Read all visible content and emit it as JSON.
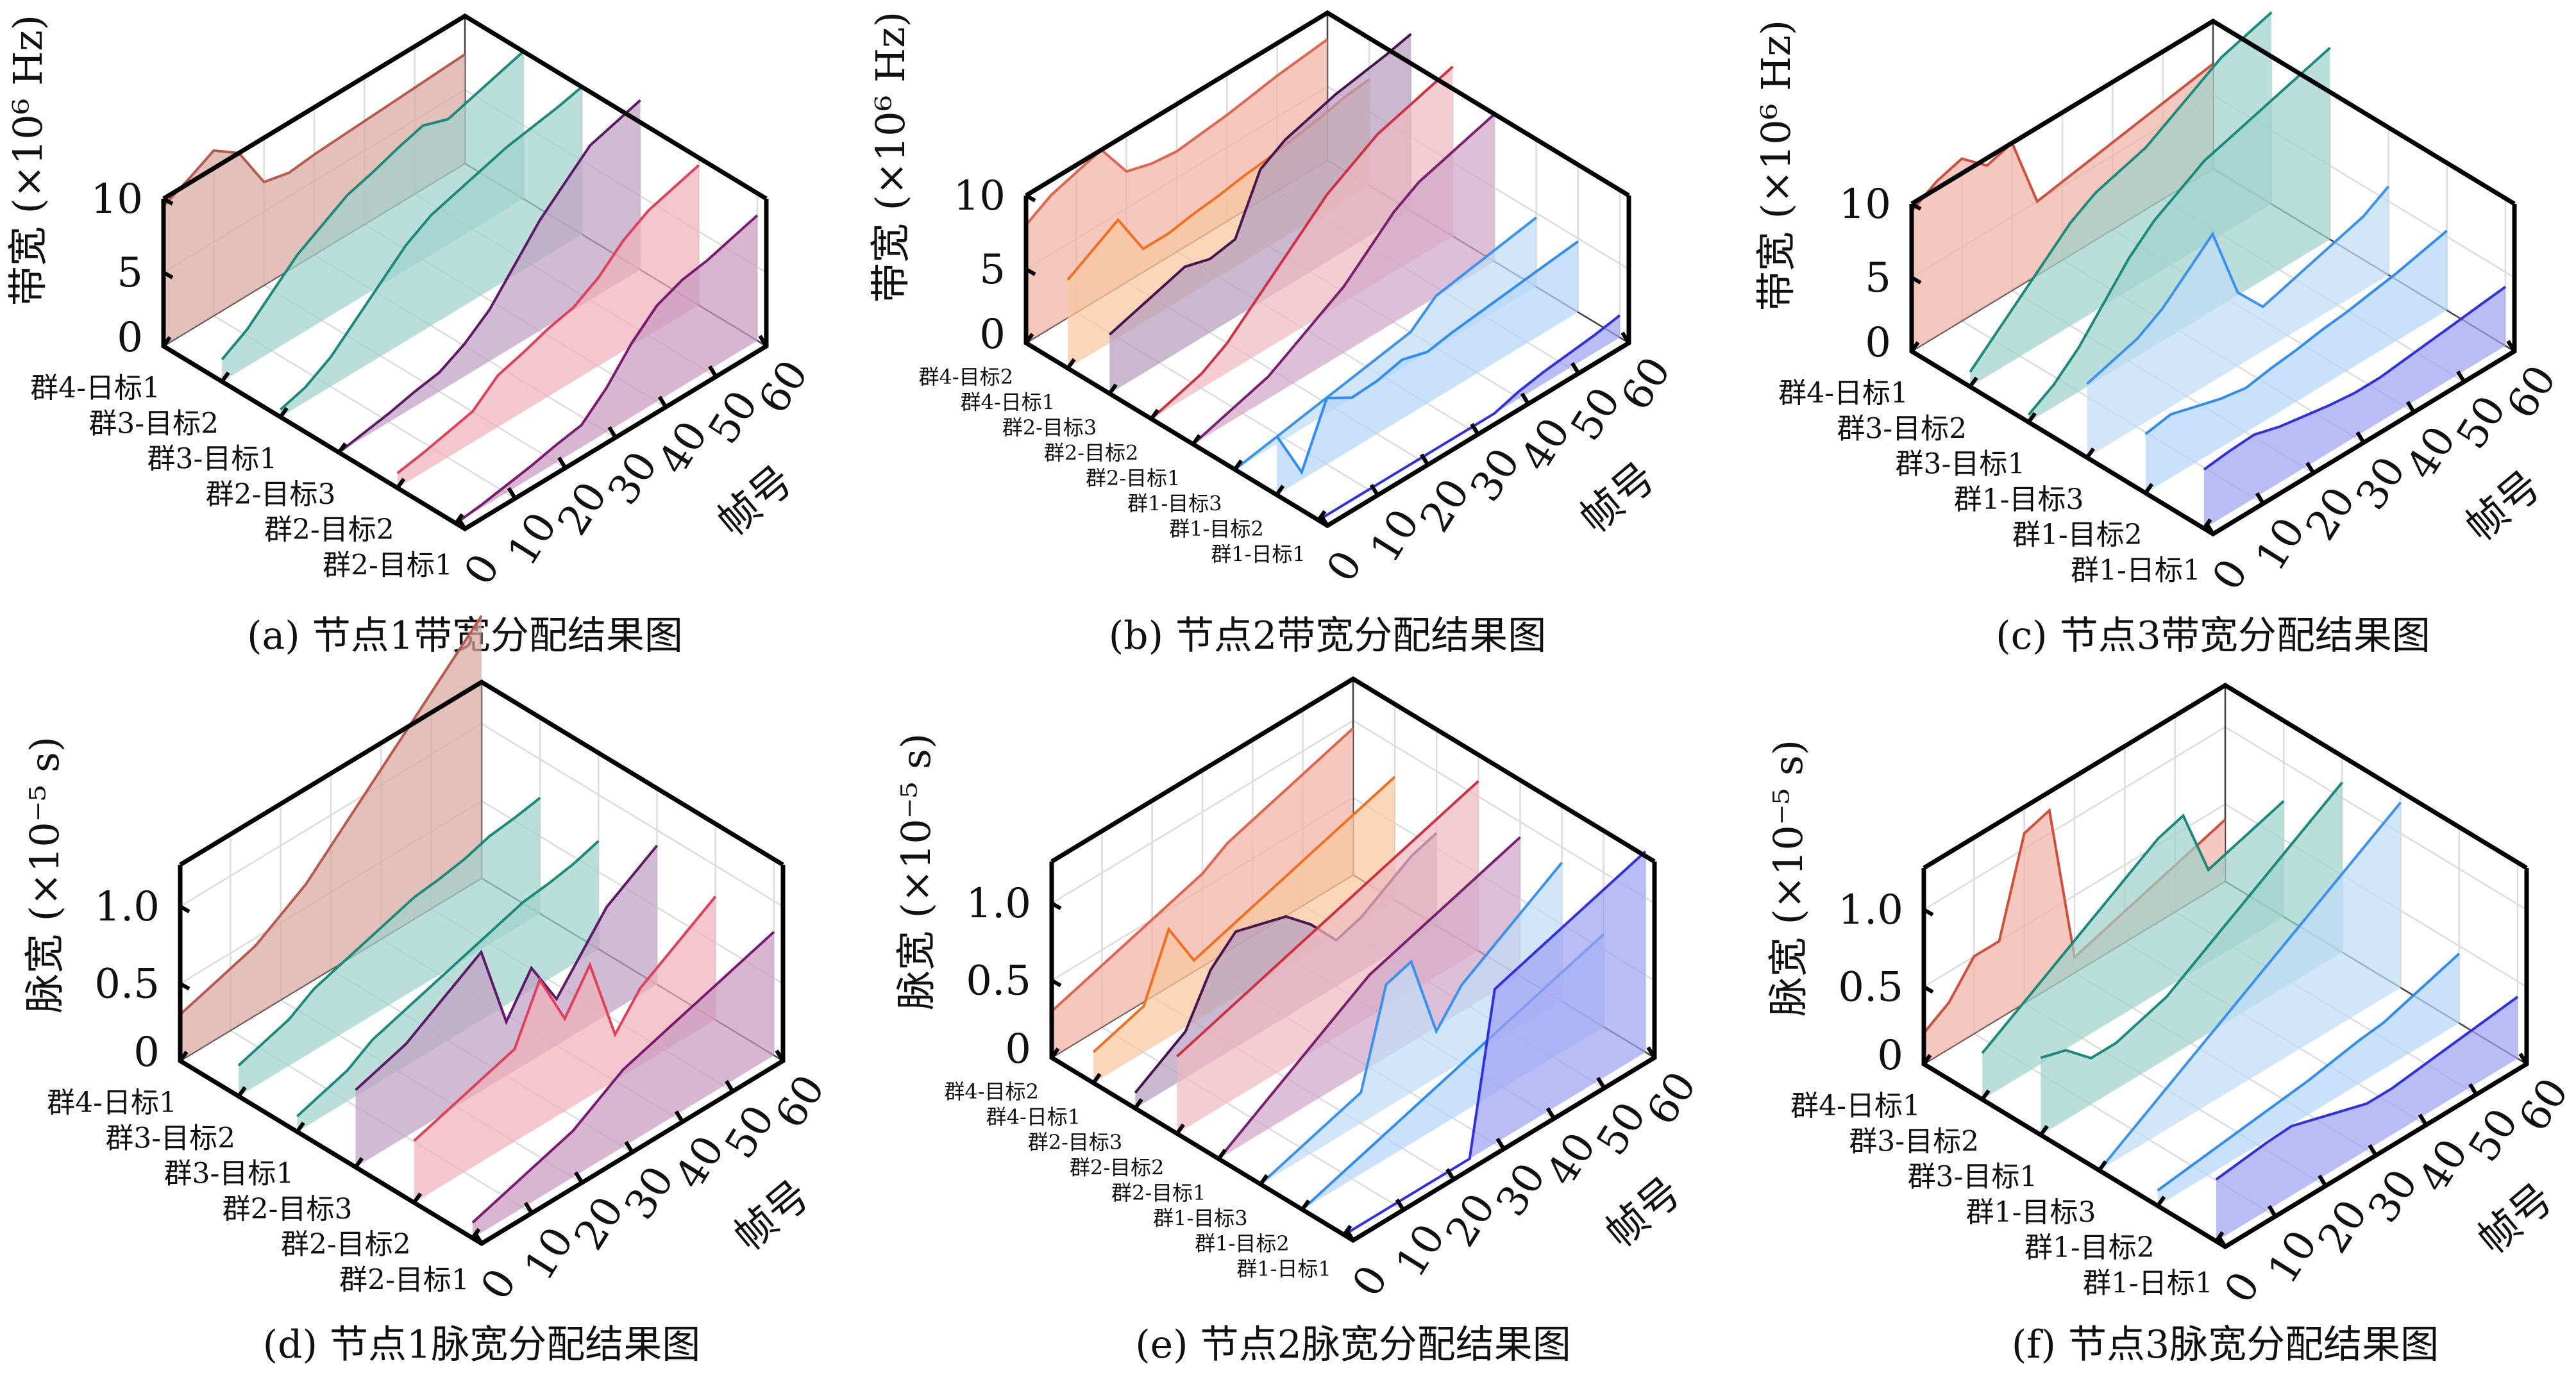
{
  "chart_data": [
    {
      "id": "a",
      "type": "area",
      "caption": "(a) 节点1带宽分配结果图",
      "zlabel": "带宽 (×10⁶ Hz)",
      "xlabel": "帧号",
      "x": [
        0,
        5,
        10,
        15,
        20,
        25,
        30,
        35,
        40,
        45,
        50,
        55,
        60
      ],
      "xticks": [
        0,
        10,
        20,
        30,
        40,
        50,
        60
      ],
      "zticks": [
        "0",
        "5",
        "10"
      ],
      "zticks_values": [
        0,
        5,
        10
      ],
      "zlim": [
        0,
        10
      ],
      "series": [
        {
          "name": "群4-日标1",
          "line": "#b85a4e",
          "fill": "#d9a7a0",
          "values": [
            9.5,
            10.3,
            11.2,
            10,
            7,
            6.6,
            6.8,
            6.9,
            7,
            7.1,
            7.2,
            7.3,
            7.4
          ]
        },
        {
          "name": "群3-目标2",
          "line": "#1a8a7a",
          "fill": "#9fd1ca",
          "values": [
            1.5,
            2.5,
            4,
            5.5,
            6.5,
            7.5,
            8,
            8.6,
            9.1,
            8.5,
            9,
            9.5,
            10
          ]
        },
        {
          "name": "群3-目标1",
          "line": "#1a8a7a",
          "fill": "#9fd1ca",
          "values": [
            0.5,
            1,
            2,
            3.5,
            5,
            6.5,
            7.5,
            8,
            8.5,
            9,
            9.3,
            9.6,
            10
          ]
        },
        {
          "name": "群2-目标3",
          "line": "#5e1a66",
          "fill": "#bfa0c2",
          "values": [
            0,
            0.3,
            0.6,
            1,
            1.3,
            2.2,
            3.5,
            5.5,
            7.5,
            9,
            10.5,
            11,
            11.5
          ]
        },
        {
          "name": "群2-目标2",
          "line": "#e0405a",
          "fill": "#f0b0ba",
          "values": [
            1,
            1.3,
            1.7,
            2.1,
            3.5,
            4,
            4.6,
            5,
            6,
            7.5,
            8.5,
            9,
            9.5
          ]
        },
        {
          "name": "群2-目标1",
          "line": "#7a1a70",
          "fill": "#c99ac1",
          "values": [
            0,
            0.2,
            0.5,
            0.8,
            1.2,
            1.5,
            3,
            5,
            6.5,
            7.2,
            7.5,
            8,
            8.5
          ]
        }
      ]
    },
    {
      "id": "b",
      "type": "area",
      "caption": "(b) 节点2带宽分配结果图",
      "zlabel": "带宽 (×10⁶ Hz)",
      "xlabel": "帧号",
      "x": [
        0,
        5,
        10,
        15,
        20,
        25,
        30,
        35,
        40,
        45,
        50,
        55,
        60
      ],
      "xticks": [
        0,
        10,
        20,
        30,
        40,
        50,
        60
      ],
      "zticks": [
        "0",
        "5",
        "10"
      ],
      "zticks_values": [
        0,
        5,
        10
      ],
      "zlim": [
        0,
        10
      ],
      "series": [
        {
          "name": "群4-目标2",
          "line": "#e0654e",
          "fill": "#f2b3a4",
          "values": [
            8,
            9,
            9.5,
            10,
            7.5,
            7,
            6.8,
            7,
            7.2,
            7.5,
            7.8,
            8,
            8.2
          ]
        },
        {
          "name": "群4-日标1",
          "line": "#f07020",
          "fill": "#f8c6a0",
          "values": [
            6,
            7,
            8,
            5,
            5,
            5.3,
            5.5,
            5.8,
            6,
            6.3,
            6.6,
            7,
            7.2
          ]
        },
        {
          "name": "群2-目标3",
          "line": "#4a1450",
          "fill": "#b49cbc",
          "values": [
            4,
            4.5,
            5,
            5.5,
            5,
            5.3,
            9,
            10,
            10.5,
            11,
            11.3,
            11.6,
            12
          ]
        },
        {
          "name": "群2-目标2",
          "line": "#d03040",
          "fill": "#eebac0",
          "values": [
            0,
            0.5,
            1,
            2,
            3.5,
            5,
            6.5,
            8,
            9,
            10,
            10.5,
            11,
            11.5
          ]
        },
        {
          "name": "群2-目标1",
          "line": "#7a2070",
          "fill": "#d0a6c8",
          "values": [
            0,
            0.5,
            1,
            1.5,
            2.5,
            3.5,
            4.5,
            6,
            7.5,
            8.5,
            9,
            9.5,
            10
          ]
        },
        {
          "name": "群1-目标3",
          "line": "#3a92f0",
          "fill": "#c0dcf8",
          "values": [
            0,
            0.3,
            0.6,
            0.9,
            1.2,
            1.5,
            1.8,
            2.1,
            3.5,
            3.8,
            4.1,
            4.4,
            4.7
          ]
        },
        {
          "name": "群1-目标2",
          "line": "#2f8cf0",
          "fill": "#b4d6f8",
          "values": [
            4,
            0.5,
            4.5,
            3.5,
            3.6,
            4,
            3.5,
            3.8,
            4,
            4.2,
            4.4,
            4.6,
            4.8
          ]
        },
        {
          "name": "群1-日标1",
          "line": "#3030e0",
          "fill": "#a0a2f2",
          "values": [
            0,
            0,
            0,
            0,
            0,
            0,
            0,
            0,
            0.5,
            0.8,
            1,
            1.2,
            1.5
          ]
        }
      ]
    },
    {
      "id": "c",
      "type": "area",
      "caption": "(c) 节点3带宽分配结果图",
      "zlabel": "带宽 (×10⁶ Hz)",
      "xlabel": "帧号",
      "x": [
        0,
        5,
        10,
        15,
        20,
        25,
        30,
        35,
        40,
        45,
        50,
        55,
        60
      ],
      "xticks": [
        0,
        10,
        20,
        30,
        40,
        50,
        60
      ],
      "zticks": [
        "0",
        "5",
        "10"
      ],
      "zticks_values": [
        0,
        5,
        10
      ],
      "zlim": [
        0,
        10
      ],
      "series": [
        {
          "name": "群4-日标1",
          "line": "#d0503e",
          "fill": "#f0b2a6",
          "values": [
            9.5,
            10.5,
            11,
            9.5,
            10,
            5,
            5.3,
            5.6,
            5.9,
            6.2,
            6.5,
            6.8,
            7.1
          ]
        },
        {
          "name": "群3-目标2",
          "line": "#1a8a7a",
          "fill": "#9fd1ca",
          "values": [
            1,
            2.5,
            4,
            5.5,
            7,
            8,
            8.5,
            9,
            10,
            11,
            12,
            12.5,
            13
          ]
        },
        {
          "name": "群3-目标1",
          "line": "#1a8a7a",
          "fill": "#9fd1ca",
          "values": [
            0.5,
            1.5,
            3,
            5,
            7,
            8.5,
            9.5,
            10.5,
            11,
            11.5,
            12,
            12.5,
            13
          ]
        },
        {
          "name": "群1-目标3",
          "line": "#3a92f0",
          "fill": "#c0dcf8",
          "values": [
            5,
            5.5,
            6,
            7,
            8.5,
            10,
            5,
            3,
            3.5,
            4,
            4.5,
            5,
            6
          ]
        },
        {
          "name": "群1-目标2",
          "line": "#2f8cf0",
          "fill": "#b4d6f8",
          "values": [
            4,
            4.3,
            3.8,
            3.3,
            3,
            3.3,
            3.5,
            3.8,
            4,
            4.3,
            4.6,
            5,
            5.4
          ]
        },
        {
          "name": "群1-日标1",
          "line": "#3030e0",
          "fill": "#a0a2f2",
          "values": [
            4,
            4.2,
            4.3,
            3.8,
            3.5,
            3.2,
            3,
            3,
            3.2,
            3.4,
            3.6,
            3.8,
            4
          ]
        }
      ]
    },
    {
      "id": "d",
      "type": "area",
      "caption": "(d) 节点1脉宽分配结果图",
      "zlabel": "脉宽 (×10⁻⁵ s)",
      "xlabel": "帧号",
      "x": [
        0,
        5,
        10,
        15,
        20,
        25,
        30,
        35,
        40,
        45,
        50,
        55,
        60
      ],
      "xticks": [
        0,
        10,
        20,
        30,
        40,
        50,
        60
      ],
      "zticks": [
        "0",
        "0.5",
        "1.0"
      ],
      "zticks_values": [
        0,
        0.5,
        1.0
      ],
      "zlim": [
        0,
        1.27
      ],
      "series": [
        {
          "name": "群4-日标1",
          "line": "#b85a4e",
          "fill": "#d9a7a0",
          "values": [
            0.3,
            0.35,
            0.4,
            0.45,
            0.55,
            0.65,
            0.8,
            0.95,
            1.1,
            1.25,
            1.4,
            1.55,
            1.7
          ]
        },
        {
          "name": "群3-目标2",
          "line": "#1a8a7a",
          "fill": "#9fd1ca",
          "values": [
            0.2,
            0.25,
            0.3,
            0.4,
            0.45,
            0.5,
            0.55,
            0.6,
            0.62,
            0.65,
            0.7,
            0.72,
            0.75
          ]
        },
        {
          "name": "群3-目标1",
          "line": "#1a8a7a",
          "fill": "#9fd1ca",
          "values": [
            0.1,
            0.15,
            0.2,
            0.3,
            0.35,
            0.4,
            0.45,
            0.5,
            0.55,
            0.6,
            0.62,
            0.65,
            0.7
          ]
        },
        {
          "name": "群2-目标3",
          "line": "#5e1a66",
          "fill": "#bfa0c2",
          "values": [
            0.5,
            0.55,
            0.6,
            0.7,
            0.8,
            0.9,
            0.35,
            0.6,
            0.3,
            0.5,
            0.7,
            0.8,
            0.9
          ]
        },
        {
          "name": "群2-目标2",
          "line": "#e0405a",
          "fill": "#f0b0ba",
          "values": [
            0.4,
            0.45,
            0.5,
            0.55,
            0.6,
            0.95,
            0.6,
            0.85,
            0.3,
            0.5,
            0.6,
            0.7,
            0.8
          ]
        },
        {
          "name": "群2-目标1",
          "line": "#7a1a70",
          "fill": "#c99ac1",
          "values": [
            0.1,
            0.15,
            0.2,
            0.25,
            0.3,
            0.4,
            0.5,
            0.55,
            0.6,
            0.65,
            0.7,
            0.75,
            0.8
          ]
        }
      ]
    },
    {
      "id": "e",
      "type": "area",
      "caption": "(e) 节点2脉宽分配结果图",
      "zlabel": "脉宽 (×10⁻⁵ s)",
      "xlabel": "帧号",
      "x": [
        0,
        5,
        10,
        15,
        20,
        25,
        30,
        35,
        40,
        45,
        50,
        55,
        60
      ],
      "xticks": [
        0,
        10,
        20,
        30,
        40,
        50,
        60
      ],
      "zticks": [
        "0",
        "0.5",
        "1.0"
      ],
      "zticks_values": [
        0,
        0.5,
        1.0
      ],
      "zlim": [
        0,
        1.27
      ],
      "series": [
        {
          "name": "群4-目标2",
          "line": "#e0654e",
          "fill": "#f2b3a4",
          "values": [
            0.3,
            0.35,
            0.4,
            0.45,
            0.5,
            0.55,
            0.6,
            0.7,
            0.75,
            0.8,
            0.85,
            0.9,
            0.95
          ]
        },
        {
          "name": "群4-日标1",
          "line": "#f07020",
          "fill": "#f8c6a0",
          "values": [
            0.2,
            0.25,
            0.3,
            0.7,
            0.4,
            0.45,
            0.5,
            0.55,
            0.6,
            0.65,
            0.7,
            0.75,
            0.8
          ]
        },
        {
          "name": "群2-目标3",
          "line": "#4a1450",
          "fill": "#b49cbc",
          "values": [
            0.1,
            0.2,
            0.3,
            0.6,
            0.75,
            0.7,
            0.65,
            0.5,
            0.3,
            0.35,
            0.45,
            0.55,
            0.6
          ]
        },
        {
          "name": "群2-目标2",
          "line": "#d03040",
          "fill": "#eebac0",
          "values": [
            0.5,
            0.55,
            0.6,
            0.65,
            0.7,
            0.75,
            0.8,
            0.85,
            0.9,
            0.95,
            1.0,
            1.05,
            1.1
          ]
        },
        {
          "name": "群2-目标1",
          "line": "#7a2070",
          "fill": "#d0a6c8",
          "values": [
            0,
            0.1,
            0.2,
            0.3,
            0.4,
            0.5,
            0.6,
            0.65,
            0.7,
            0.75,
            0.8,
            0.85,
            0.9
          ]
        },
        {
          "name": "群1-目标3",
          "line": "#3a92f0",
          "fill": "#c0dcf8",
          "values": [
            0,
            0.05,
            0.1,
            0.15,
            0.2,
            0.8,
            0.85,
            0.3,
            0.5,
            0.6,
            0.7,
            0.8,
            0.9
          ]
        },
        {
          "name": "群1-目标2",
          "line": "#2f8cf0",
          "fill": "#b4d6f8",
          "values": [
            0,
            0.05,
            0.1,
            0.15,
            0.2,
            0.25,
            0.3,
            0.35,
            0.4,
            0.45,
            0.5,
            0.55,
            0.6
          ]
        },
        {
          "name": "群1-日标1",
          "line": "#3030e0",
          "fill": "#a0a2f2",
          "values": [
            0,
            0,
            0,
            0,
            0,
            0,
            1.0,
            1.05,
            1.1,
            1.15,
            1.2,
            1.25,
            1.3
          ]
        }
      ]
    },
    {
      "id": "f",
      "type": "area",
      "caption": "(f) 节点3脉宽分配结果图",
      "zlabel": "脉宽 (×10⁻⁵ s)",
      "xlabel": "帧号",
      "x": [
        0,
        5,
        10,
        15,
        20,
        25,
        30,
        35,
        40,
        45,
        50,
        55,
        60
      ],
      "xticks": [
        0,
        10,
        20,
        30,
        40,
        50,
        60
      ],
      "zticks": [
        "0",
        "0.5",
        "1.0"
      ],
      "zticks_values": [
        0,
        0.5,
        1.0
      ],
      "zlim": [
        0,
        1.27
      ],
      "series": [
        {
          "name": "群4-日标1",
          "line": "#d0503e",
          "fill": "#f0b2a6",
          "values": [
            0.2,
            0.3,
            0.5,
            0.5,
            1.1,
            1.15,
            0.1,
            0.15,
            0.2,
            0.25,
            0.3,
            0.35,
            0.4
          ]
        },
        {
          "name": "群3-目标2",
          "line": "#1a8a7a",
          "fill": "#9fd1ca",
          "values": [
            0.3,
            0.4,
            0.5,
            0.6,
            0.7,
            0.8,
            0.9,
            1.0,
            1.05,
            0.6,
            0.65,
            0.7,
            0.75
          ]
        },
        {
          "name": "群3-目标1",
          "line": "#1a8a7a",
          "fill": "#9fd1ca",
          "values": [
            0.5,
            0.45,
            0.3,
            0.3,
            0.35,
            0.4,
            0.5,
            0.6,
            0.7,
            0.8,
            0.9,
            1.0,
            1.1
          ]
        },
        {
          "name": "群1-目标3",
          "line": "#3a92f0",
          "fill": "#c0dcf8",
          "values": [
            0,
            0.1,
            0.2,
            0.3,
            0.4,
            0.5,
            0.6,
            0.7,
            0.8,
            0.9,
            1.0,
            1.1,
            1.2
          ]
        },
        {
          "name": "群1-目标2",
          "line": "#2f8cf0",
          "fill": "#b4d6f8",
          "values": [
            0.1,
            0.12,
            0.14,
            0.16,
            0.18,
            0.2,
            0.22,
            0.25,
            0.28,
            0.3,
            0.35,
            0.4,
            0.45
          ]
        },
        {
          "name": "群1-日标1",
          "line": "#3030e0",
          "fill": "#a0a2f2",
          "values": [
            0.4,
            0.42,
            0.44,
            0.45,
            0.4,
            0.35,
            0.3,
            0.3,
            0.32,
            0.34,
            0.36,
            0.38,
            0.4
          ]
        }
      ]
    }
  ]
}
